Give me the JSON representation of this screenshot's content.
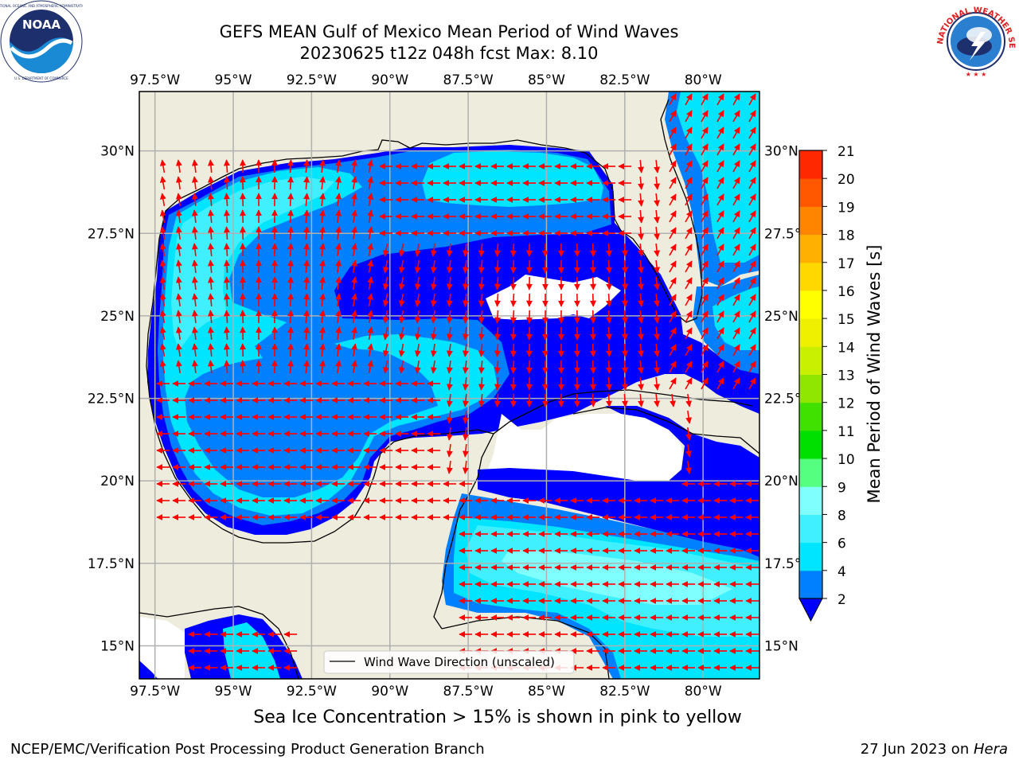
{
  "title": {
    "line1": "GEFS MEAN Gulf of Mexico Mean Period of Wind Waves",
    "line2": "20230625 t12z 048h fcst   Max: 8.10"
  },
  "map": {
    "lon_labels": [
      "97.5°W",
      "95°W",
      "92.5°W",
      "90°W",
      "87.5°W",
      "85°W",
      "82.5°W",
      "80°W"
    ],
    "lon_values": [
      -97.5,
      -95,
      -92.5,
      -90,
      -87.5,
      -85,
      -82.5,
      -80
    ],
    "lat_labels": [
      "15°N",
      "17.5°N",
      "20°N",
      "22.5°N",
      "25°N",
      "27.5°N",
      "30°N"
    ],
    "lat_values": [
      15,
      17.5,
      20,
      22.5,
      25,
      27.5,
      30
    ],
    "lon_range": [
      -98,
      -78.2
    ],
    "lat_range": [
      14,
      31.8
    ],
    "legend_label": "Wind Wave Direction (unscaled)",
    "arrow_color": "#ff0000",
    "land_color": "#eeecdc",
    "grid_color": "#b0b0b0"
  },
  "colorbar": {
    "label": "Mean Period of Wind Waves [s]",
    "ticks": [
      "2",
      "4",
      "6",
      "8",
      "9",
      "10",
      "11",
      "12",
      "13",
      "14",
      "15",
      "16",
      "17",
      "18",
      "19",
      "20",
      "21"
    ],
    "colors": [
      "#0000ff",
      "#0080ff",
      "#00e5ff",
      "#40f0ff",
      "#80ffff",
      "#55ff80",
      "#00e000",
      "#40e000",
      "#90e600",
      "#c8f000",
      "#eef000",
      "#ffff00",
      "#ffd800",
      "#ffb000",
      "#ff8400",
      "#ff5800",
      "#ff2800",
      "#ff0000"
    ]
  },
  "ice_note": "Sea Ice Concentration > 15% is shown in pink to yellow",
  "footer": {
    "left": "NCEP/EMC/Verification Post Processing Product Generation Branch",
    "date": "27 Jun 2023 on ",
    "machine": "Hera"
  },
  "logos": {
    "noaa_text": "NOAA",
    "nws_text": "NATIONAL WEATHER SERVICE"
  }
}
